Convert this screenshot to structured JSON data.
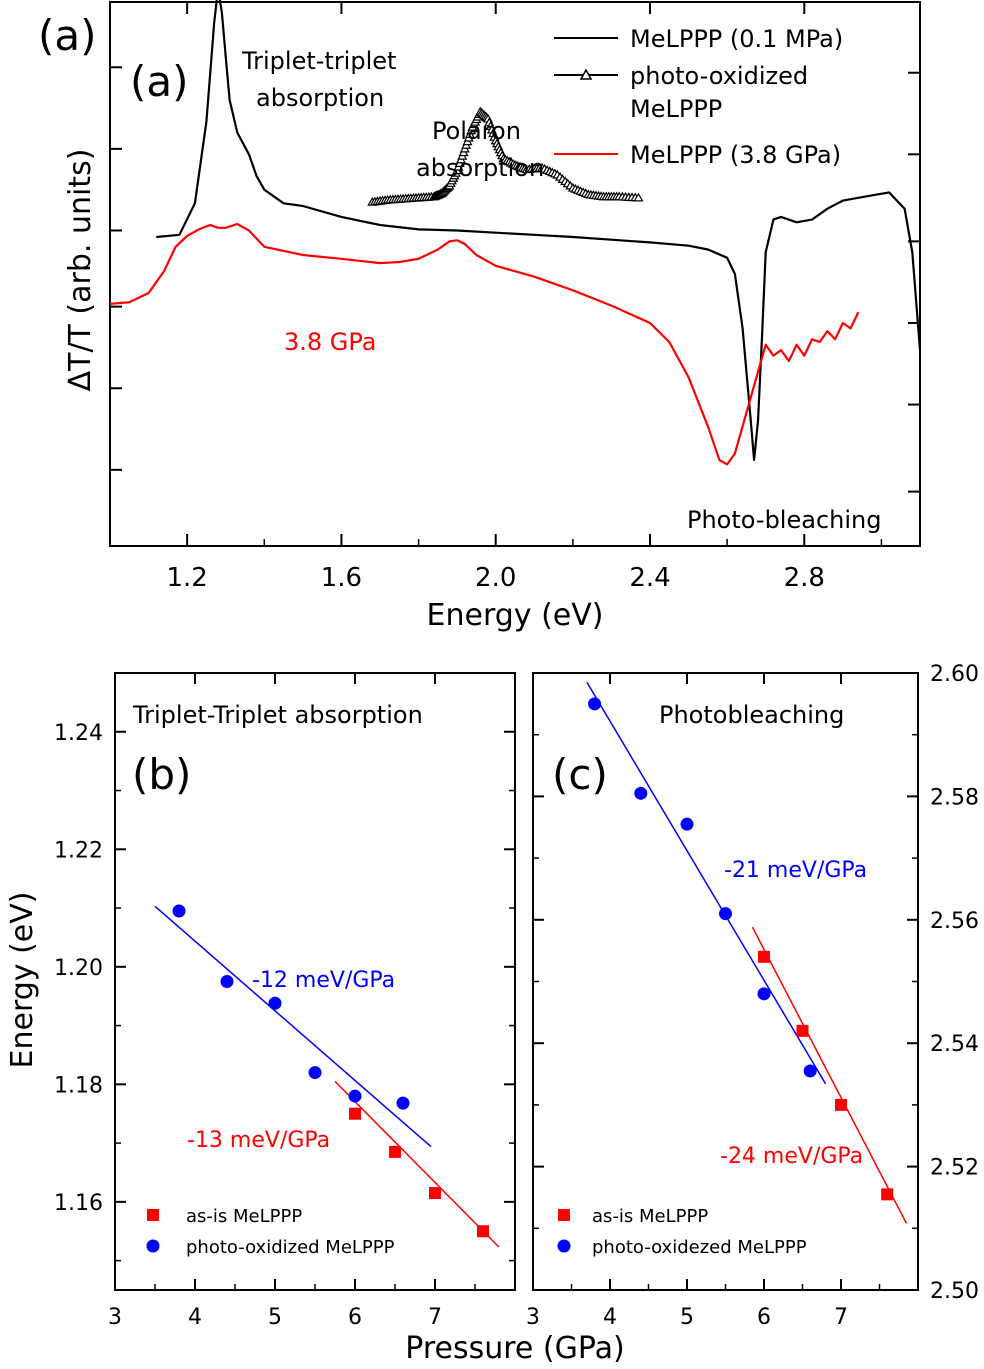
{
  "chart_data": [
    {
      "id": "a",
      "type": "line",
      "panel_label": "(a)",
      "panel_label_inner": "(a)",
      "xlabel": "Energy (eV)",
      "ylabel": "ΔT/T (arb. units)",
      "xlim": [
        1.0,
        3.1
      ],
      "ylim": [
        0,
        10
      ],
      "x_ticks": [
        1.2,
        1.6,
        2.0,
        2.4,
        2.8
      ],
      "x_tick_labels": [
        "1.2",
        "1.6",
        "2.0",
        "2.4",
        "2.8"
      ],
      "y_unit_note": "arbitrary units, no tick labels",
      "series": [
        {
          "name": "MeLPPP (0.1 MPa)",
          "color": "#000000",
          "marker": "none",
          "x": [
            1.12,
            1.18,
            1.22,
            1.25,
            1.27,
            1.28,
            1.29,
            1.3,
            1.31,
            1.33,
            1.36,
            1.38,
            1.4,
            1.45,
            1.5,
            1.6,
            1.7,
            1.8,
            1.9,
            2.0,
            2.1,
            2.2,
            2.3,
            2.4,
            2.5,
            2.55,
            2.6,
            2.62,
            2.64,
            2.66,
            2.67,
            2.68,
            2.69,
            2.7,
            2.72,
            2.74,
            2.78,
            2.82,
            2.86,
            2.9,
            2.94,
            2.98,
            3.02,
            3.06,
            3.08,
            3.1
          ],
          "y": [
            5.68,
            5.72,
            6.3,
            7.8,
            9.6,
            10.25,
            9.8,
            9.0,
            8.2,
            7.6,
            7.2,
            6.8,
            6.55,
            6.3,
            6.25,
            6.05,
            5.9,
            5.82,
            5.8,
            5.76,
            5.72,
            5.68,
            5.63,
            5.58,
            5.52,
            5.45,
            5.3,
            5.0,
            4.0,
            2.4,
            1.58,
            2.3,
            3.8,
            5.4,
            6.0,
            6.05,
            5.95,
            6.0,
            6.2,
            6.35,
            6.4,
            6.45,
            6.5,
            6.2,
            5.4,
            3.6
          ]
        },
        {
          "name": "photo-oxidized MeLPPP",
          "color": "#000000",
          "marker": "triangle",
          "x": [
            1.68,
            1.72,
            1.76,
            1.8,
            1.84,
            1.86,
            1.88,
            1.9,
            1.92,
            1.94,
            1.96,
            1.98,
            2.0,
            2.02,
            2.05,
            2.08,
            2.12,
            2.16,
            2.2,
            2.24,
            2.28,
            2.32,
            2.37
          ],
          "y": [
            6.32,
            6.36,
            6.38,
            6.4,
            6.42,
            6.48,
            6.62,
            6.9,
            7.3,
            7.7,
            7.98,
            7.85,
            7.45,
            7.12,
            7.0,
            6.92,
            6.95,
            6.82,
            6.58,
            6.46,
            6.42,
            6.42,
            6.4
          ]
        },
        {
          "name": "MeLPPP (3.8 GPa)",
          "color": "#ff0000",
          "marker": "none",
          "x": [
            1.0,
            1.05,
            1.1,
            1.14,
            1.17,
            1.2,
            1.23,
            1.26,
            1.28,
            1.3,
            1.33,
            1.36,
            1.4,
            1.5,
            1.6,
            1.7,
            1.75,
            1.8,
            1.85,
            1.88,
            1.9,
            1.92,
            1.95,
            2.0,
            2.1,
            2.2,
            2.3,
            2.4,
            2.45,
            2.5,
            2.55,
            2.58,
            2.6,
            2.62,
            2.64,
            2.66,
            2.68,
            2.7,
            2.72,
            2.74,
            2.76,
            2.78,
            2.8,
            2.82,
            2.84,
            2.86,
            2.88,
            2.9,
            2.92,
            2.94
          ],
          "y": [
            4.45,
            4.48,
            4.65,
            5.05,
            5.5,
            5.7,
            5.82,
            5.9,
            5.85,
            5.85,
            5.92,
            5.8,
            5.5,
            5.35,
            5.28,
            5.2,
            5.22,
            5.28,
            5.45,
            5.6,
            5.62,
            5.55,
            5.35,
            5.15,
            4.95,
            4.7,
            4.42,
            4.1,
            3.75,
            3.1,
            2.2,
            1.58,
            1.5,
            1.7,
            2.2,
            2.7,
            3.2,
            3.7,
            3.5,
            3.6,
            3.4,
            3.7,
            3.5,
            3.8,
            3.75,
            3.95,
            3.8,
            4.1,
            4.0,
            4.3
          ]
        }
      ],
      "legend": {
        "position": "top-right",
        "entries": [
          {
            "label": "MeLPPP (0.1 MPa)",
            "color": "#000000",
            "marker": "none"
          },
          {
            "label": "photo-oxidized",
            "label_line2": "MeLPPP",
            "color": "#000000",
            "marker": "triangle"
          },
          {
            "label": "MeLPPP (3.8 GPa)",
            "color": "#ff0000",
            "marker": "none"
          }
        ]
      },
      "annotations": [
        {
          "text": "Triplet-triplet",
          "text_line2": "absorption",
          "color": "#000000",
          "near": "peak at 1.29 eV"
        },
        {
          "text": "Polaron",
          "text_line2": "absorption",
          "color": "#000000",
          "near": "peak at 1.97 eV"
        },
        {
          "text": "3.8 GPa",
          "color": "#ff0000",
          "near": "red curve below 1.5 eV"
        },
        {
          "text": "Photo-bleaching",
          "color": "#000000",
          "near": "dip at 2.6–2.67 eV"
        }
      ]
    },
    {
      "id": "b",
      "type": "scatter",
      "panel_label": "(b)",
      "title": "Triplet-Triplet absorption",
      "xlabel": "Pressure (GPa)",
      "ylabel": "Energy (eV)",
      "xlim": [
        3,
        8
      ],
      "ylim": [
        1.145,
        1.25
      ],
      "x_ticks": [
        3,
        4,
        5,
        6,
        7
      ],
      "x_tick_labels": [
        "3",
        "4",
        "5",
        "6",
        "7"
      ],
      "y_ticks": [
        1.16,
        1.18,
        1.2,
        1.22,
        1.24
      ],
      "y_tick_labels": [
        "1.16",
        "1.18",
        "1.20",
        "1.22",
        "1.24"
      ],
      "series": [
        {
          "name": "as-is MeLPPP",
          "color": "#ff0000",
          "marker": "square",
          "x": [
            6.0,
            6.5,
            7.0,
            7.6
          ],
          "y": [
            1.175,
            1.1685,
            1.1615,
            1.155
          ]
        },
        {
          "name": "photo-oxidized MeLPPP",
          "color": "#0000ff",
          "marker": "circle",
          "x": [
            3.8,
            4.4,
            5.0,
            5.5,
            6.0,
            6.6
          ],
          "y": [
            1.2095,
            1.1975,
            1.1938,
            1.182,
            1.178,
            1.1768
          ]
        }
      ],
      "fits": [
        {
          "color": "#ff0000",
          "x": [
            5.75,
            7.8
          ],
          "y": [
            1.1805,
            1.1523
          ]
        },
        {
          "color": "#0000ff",
          "x": [
            3.5,
            6.95
          ],
          "y": [
            1.2103,
            1.1694
          ]
        }
      ],
      "legend": {
        "position": "bottom-left",
        "entries": [
          {
            "label": "as-is MeLPPP",
            "color": "#ff0000",
            "marker": "square"
          },
          {
            "label": "photo-oxidized MeLPPP",
            "color": "#0000ff",
            "marker": "circle"
          }
        ]
      },
      "annotations": [
        {
          "text": "-12 meV/GPa",
          "color": "#0000ff"
        },
        {
          "text": "-13 meV/GPa",
          "color": "#ff0000"
        }
      ]
    },
    {
      "id": "c",
      "type": "scatter",
      "panel_label": "(c)",
      "title": "Photobleaching",
      "xlabel": "Pressure (GPa)",
      "ylabel": "",
      "xlim": [
        3,
        8
      ],
      "ylim": [
        2.5,
        2.6
      ],
      "x_ticks": [
        3,
        4,
        5,
        6,
        7
      ],
      "x_tick_labels": [
        "3",
        "4",
        "5",
        "6",
        "7"
      ],
      "y_ticks": [
        2.5,
        2.52,
        2.54,
        2.56,
        2.58,
        2.6
      ],
      "y_tick_labels": [
        "2.50",
        "2.52",
        "2.54",
        "2.56",
        "2.58",
        "2.60"
      ],
      "series": [
        {
          "name": "as-is MeLPPP",
          "color": "#ff0000",
          "marker": "square",
          "x": [
            6.0,
            6.5,
            7.0,
            7.6
          ],
          "y": [
            2.554,
            2.542,
            2.53,
            2.5155
          ]
        },
        {
          "name": "photo-oxidezed MeLPPP",
          "color": "#0000ff",
          "marker": "circle",
          "x": [
            3.8,
            4.4,
            5.0,
            5.5,
            6.0,
            6.6
          ],
          "y": [
            2.595,
            2.5805,
            2.5755,
            2.561,
            2.548,
            2.5355
          ]
        }
      ],
      "fits": [
        {
          "color": "#ff0000",
          "x": [
            5.85,
            7.85
          ],
          "y": [
            2.5588,
            2.5108
          ]
        },
        {
          "color": "#0000ff",
          "x": [
            3.7,
            6.8
          ],
          "y": [
            2.5985,
            2.5334
          ]
        }
      ],
      "legend": {
        "position": "bottom-left",
        "entries": [
          {
            "label": "as-is MeLPPP",
            "color": "#ff0000",
            "marker": "square"
          },
          {
            "label": "photo-oxidezed MeLPPP",
            "color": "#0000ff",
            "marker": "circle"
          }
        ]
      },
      "annotations": [
        {
          "text": "-21 meV/GPa",
          "color": "#0000ff"
        },
        {
          "text": "-24 meV/GPa",
          "color": "#ff0000"
        }
      ]
    }
  ],
  "shared": {
    "bottom_xlabel": "Pressure (GPa)",
    "left_ylabel": "Energy (eV)"
  }
}
